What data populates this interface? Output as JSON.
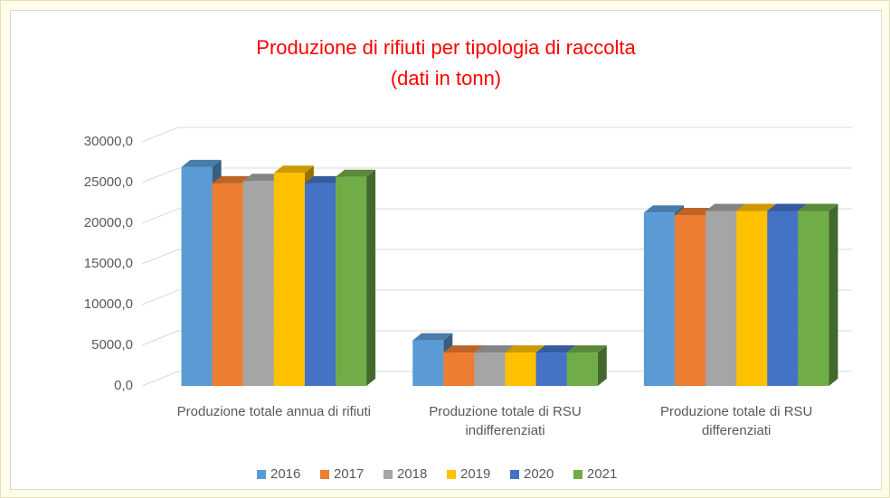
{
  "chart_data": {
    "type": "bar3d",
    "title": "Produzione di rifiuti per tipologia di raccolta",
    "subtitle": "(dati in tonn)",
    "categories": [
      "Produzione totale annua di rifiuti",
      "Produzione totale di RSU indifferenziati",
      "Produzione totale di RSU differenziati"
    ],
    "series": [
      {
        "name": "2016",
        "color": "#5b9bd5",
        "values": [
          26900,
          5600,
          21300
        ]
      },
      {
        "name": "2017",
        "color": "#ed7d31",
        "values": [
          24900,
          4100,
          21000
        ]
      },
      {
        "name": "2018",
        "color": "#a5a5a5",
        "values": [
          25200,
          4100,
          21500
        ]
      },
      {
        "name": "2019",
        "color": "#ffc000",
        "values": [
          26200,
          4100,
          21500
        ]
      },
      {
        "name": "2020",
        "color": "#4472c4",
        "values": [
          24900,
          4100,
          21500
        ]
      },
      {
        "name": "2021",
        "color": "#70ad47",
        "values": [
          25700,
          4100,
          21500
        ]
      }
    ],
    "ylim": [
      0,
      30000
    ],
    "yticks": [
      {
        "value": 0,
        "label": "0,0"
      },
      {
        "value": 5000,
        "label": "5000,0"
      },
      {
        "value": 10000,
        "label": "10000,0"
      },
      {
        "value": 15000,
        "label": "15000,0"
      },
      {
        "value": 20000,
        "label": "20000,0"
      },
      {
        "value": 25000,
        "label": "25000,0"
      },
      {
        "value": 30000,
        "label": "30000,0"
      }
    ],
    "grid": true,
    "legend": "bottom"
  }
}
